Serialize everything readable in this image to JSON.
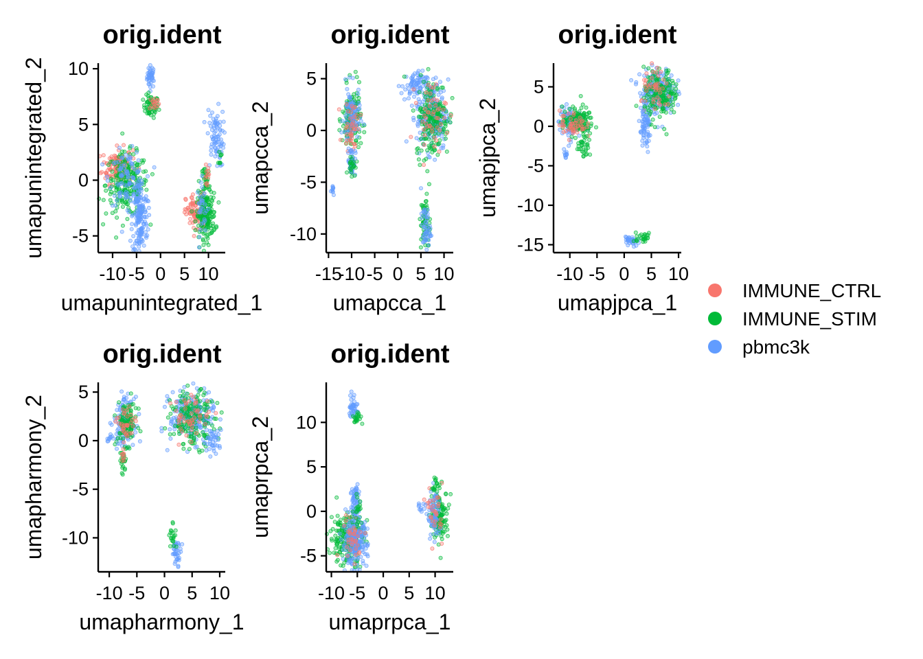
{
  "colors": {
    "IMMUNE_CTRL": "#F8766D",
    "IMMUNE_STIM": "#00BA38",
    "pbmc3k": "#619CFF"
  },
  "legend": {
    "position": "right",
    "items": [
      {
        "label": "IMMUNE_CTRL",
        "color": "#F8766D"
      },
      {
        "label": "IMMUNE_STIM",
        "color": "#00BA38"
      },
      {
        "label": "pbmc3k",
        "color": "#619CFF"
      }
    ]
  },
  "chart_data": [
    {
      "type": "scatter",
      "title": "orig.ident",
      "xlabel": "umapunintegrated_1",
      "ylabel": "umapunintegrated_2",
      "xlim": [
        -13,
        13.5
      ],
      "ylim": [
        -6.5,
        10.5
      ],
      "xticks": [
        -10,
        -5,
        0,
        5,
        10
      ],
      "xtick_labels": [
        "-10",
        "-5",
        "0",
        "5",
        "10"
      ],
      "yticks": [
        -5,
        0,
        5,
        10
      ],
      "ytick_labels": [
        "-5",
        "0",
        "5",
        "10"
      ],
      "clusters": [
        {
          "group": "pbmc3k",
          "cx": -2.0,
          "cy": 9.3,
          "sx": 0.4,
          "sy": 0.5,
          "n": 40
        },
        {
          "group": "IMMUNE_STIM",
          "cx": -2.0,
          "cy": 6.6,
          "sx": 0.8,
          "sy": 0.5,
          "n": 60
        },
        {
          "group": "IMMUNE_CTRL",
          "cx": -1.3,
          "cy": 6.9,
          "sx": 0.5,
          "sy": 0.3,
          "n": 15
        },
        {
          "group": "IMMUNE_CTRL",
          "cx": -9.0,
          "cy": 1.3,
          "sx": 1.6,
          "sy": 0.8,
          "n": 130
        },
        {
          "group": "IMMUNE_STIM",
          "cx": -7.0,
          "cy": -0.4,
          "sx": 2.2,
          "sy": 1.4,
          "n": 220
        },
        {
          "group": "pbmc3k",
          "cx": -7.0,
          "cy": 0.2,
          "sx": 1.8,
          "sy": 1.2,
          "n": 90
        },
        {
          "group": "pbmc3k",
          "cx": -4.3,
          "cy": -3.3,
          "sx": 0.8,
          "sy": 1.8,
          "n": 160
        },
        {
          "group": "pbmc3k",
          "cx": 11.5,
          "cy": 3.8,
          "sx": 0.9,
          "sy": 1.3,
          "n": 80
        },
        {
          "group": "IMMUNE_STIM",
          "cx": 12.3,
          "cy": 2.0,
          "sx": 0.2,
          "sy": 0.3,
          "n": 8
        },
        {
          "group": "IMMUNE_CTRL",
          "cx": 7.5,
          "cy": -3.0,
          "sx": 1.1,
          "sy": 0.9,
          "n": 100
        },
        {
          "group": "IMMUNE_STIM",
          "cx": 9.5,
          "cy": -3.2,
          "sx": 1.0,
          "sy": 1.0,
          "n": 160
        },
        {
          "group": "IMMUNE_STIM",
          "cx": 9.5,
          "cy": -0.2,
          "sx": 0.4,
          "sy": 0.8,
          "n": 40
        },
        {
          "group": "IMMUNE_CTRL",
          "cx": 9.6,
          "cy": 0.3,
          "sx": 0.3,
          "sy": 0.5,
          "n": 12
        },
        {
          "group": "pbmc3k",
          "cx": 8.8,
          "cy": -2.5,
          "sx": 0.6,
          "sy": 1.2,
          "n": 30
        }
      ]
    },
    {
      "type": "scatter",
      "title": "orig.ident",
      "xlabel": "umapcca_1",
      "ylabel": "umapcca_2",
      "xlim": [
        -15.5,
        12
      ],
      "ylim": [
        -11.8,
        6.5
      ],
      "xticks": [
        -15,
        -10,
        -5,
        0,
        5,
        10
      ],
      "xtick_labels": [
        "-15",
        "-10",
        "-5",
        "0",
        "5",
        "10"
      ],
      "yticks": [
        -10,
        -5,
        0,
        5
      ],
      "ytick_labels": [
        "-10",
        "-5",
        "0",
        "5"
      ],
      "clusters": [
        {
          "group": "pbmc3k",
          "cx": -14.0,
          "cy": -5.8,
          "sx": 0.2,
          "sy": 0.3,
          "n": 10
        },
        {
          "group": "IMMUNE_STIM",
          "cx": -10.0,
          "cy": 1.0,
          "sx": 1.0,
          "sy": 1.6,
          "n": 140
        },
        {
          "group": "pbmc3k",
          "cx": -10.0,
          "cy": 1.2,
          "sx": 0.9,
          "sy": 1.5,
          "n": 90
        },
        {
          "group": "IMMUNE_CTRL",
          "cx": -10.0,
          "cy": 0.5,
          "sx": 0.9,
          "sy": 1.2,
          "n": 40
        },
        {
          "group": "pbmc3k",
          "cx": -10.0,
          "cy": -3.0,
          "sx": 0.4,
          "sy": 0.7,
          "n": 40
        },
        {
          "group": "IMMUNE_STIM",
          "cx": -10.0,
          "cy": -3.3,
          "sx": 0.4,
          "sy": 0.5,
          "n": 20
        },
        {
          "group": "pbmc3k",
          "cx": 3.5,
          "cy": 4.3,
          "sx": 1.4,
          "sy": 0.7,
          "n": 70
        },
        {
          "group": "pbmc3k",
          "cx": 7.5,
          "cy": 1.5,
          "sx": 1.7,
          "sy": 1.7,
          "n": 220
        },
        {
          "group": "IMMUNE_STIM",
          "cx": 7.5,
          "cy": 1.2,
          "sx": 1.8,
          "sy": 1.9,
          "n": 180
        },
        {
          "group": "IMMUNE_CTRL",
          "cx": 7.3,
          "cy": 1.5,
          "sx": 1.6,
          "sy": 1.6,
          "n": 50
        },
        {
          "group": "IMMUNE_STIM",
          "cx": 6.0,
          "cy": -9.0,
          "sx": 0.5,
          "sy": 1.4,
          "n": 60
        },
        {
          "group": "pbmc3k",
          "cx": 6.0,
          "cy": -9.5,
          "sx": 0.5,
          "sy": 1.1,
          "n": 50
        }
      ]
    },
    {
      "type": "scatter",
      "title": "orig.ident",
      "xlabel": "umapjpca_1",
      "ylabel": "umapjpca_2",
      "xlim": [
        -13,
        10.5
      ],
      "ylim": [
        -16,
        8
      ],
      "xticks": [
        -10,
        -5,
        0,
        5,
        10
      ],
      "xtick_labels": [
        "-10",
        "-5",
        "0",
        "5",
        "10"
      ],
      "yticks": [
        -15,
        -10,
        -5,
        0,
        5
      ],
      "ytick_labels": [
        "-15",
        "-10",
        "-5",
        "0",
        "5"
      ],
      "clusters": [
        {
          "group": "pbmc3k",
          "cx": -10.0,
          "cy": 0.5,
          "sx": 1.0,
          "sy": 1.0,
          "n": 100
        },
        {
          "group": "IMMUNE_STIM",
          "cx": -8.5,
          "cy": 0.6,
          "sx": 1.4,
          "sy": 0.9,
          "n": 130
        },
        {
          "group": "IMMUNE_CTRL",
          "cx": -9.5,
          "cy": 0.3,
          "sx": 1.2,
          "sy": 0.9,
          "n": 50
        },
        {
          "group": "IMMUNE_STIM",
          "cx": -7.3,
          "cy": -2.6,
          "sx": 0.6,
          "sy": 0.6,
          "n": 30
        },
        {
          "group": "pbmc3k",
          "cx": -10.8,
          "cy": -3.5,
          "sx": 0.2,
          "sy": 0.4,
          "n": 10
        },
        {
          "group": "pbmc3k",
          "cx": 6.0,
          "cy": 4.5,
          "sx": 1.6,
          "sy": 1.5,
          "n": 200
        },
        {
          "group": "IMMUNE_STIM",
          "cx": 6.8,
          "cy": 4.0,
          "sx": 1.6,
          "sy": 1.6,
          "n": 170
        },
        {
          "group": "IMMUNE_CTRL",
          "cx": 6.0,
          "cy": 4.5,
          "sx": 1.4,
          "sy": 1.4,
          "n": 45
        },
        {
          "group": "pbmc3k",
          "cx": 3.8,
          "cy": -0.5,
          "sx": 0.6,
          "sy": 1.4,
          "n": 60
        },
        {
          "group": "pbmc3k",
          "cx": 1.3,
          "cy": -14.5,
          "sx": 0.6,
          "sy": 0.4,
          "n": 35
        },
        {
          "group": "IMMUNE_STIM",
          "cx": 3.2,
          "cy": -14.1,
          "sx": 1.0,
          "sy": 0.3,
          "n": 25
        }
      ]
    },
    {
      "type": "scatter",
      "title": "orig.ident",
      "xlabel": "umapharmony_1",
      "ylabel": "umapharmony_2",
      "xlim": [
        -12,
        11
      ],
      "ylim": [
        -13.5,
        6
      ],
      "xticks": [
        -10,
        -5,
        0,
        5,
        10
      ],
      "xtick_labels": [
        "-10",
        "-5",
        "0",
        "5",
        "10"
      ],
      "yticks": [
        -10,
        -5,
        0,
        5
      ],
      "ytick_labels": [
        "-10",
        "-5",
        "0",
        "5"
      ],
      "clusters": [
        {
          "group": "pbmc3k",
          "cx": -7.3,
          "cy": 2.0,
          "sx": 0.9,
          "sy": 1.2,
          "n": 120
        },
        {
          "group": "IMMUNE_STIM",
          "cx": -6.8,
          "cy": 1.8,
          "sx": 0.9,
          "sy": 1.1,
          "n": 110
        },
        {
          "group": "IMMUNE_CTRL",
          "cx": -7.0,
          "cy": 1.5,
          "sx": 0.8,
          "sy": 1.0,
          "n": 35
        },
        {
          "group": "pbmc3k",
          "cx": -10.0,
          "cy": 0.3,
          "sx": 0.6,
          "sy": 0.2,
          "n": 10
        },
        {
          "group": "IMMUNE_STIM",
          "cx": -7.5,
          "cy": -2.3,
          "sx": 0.3,
          "sy": 0.7,
          "n": 25
        },
        {
          "group": "IMMUNE_CTRL",
          "cx": -7.6,
          "cy": -1.6,
          "sx": 0.2,
          "sy": 0.4,
          "n": 8
        },
        {
          "group": "pbmc3k",
          "cx": 5.0,
          "cy": 2.5,
          "sx": 2.0,
          "sy": 1.3,
          "n": 230
        },
        {
          "group": "IMMUNE_STIM",
          "cx": 5.2,
          "cy": 2.2,
          "sx": 2.0,
          "sy": 1.4,
          "n": 170
        },
        {
          "group": "IMMUNE_CTRL",
          "cx": 5.0,
          "cy": 2.4,
          "sx": 1.8,
          "sy": 1.2,
          "n": 50
        },
        {
          "group": "pbmc3k",
          "cx": 8.8,
          "cy": 0.0,
          "sx": 0.8,
          "sy": 0.6,
          "n": 35
        },
        {
          "group": "pbmc3k",
          "cx": 2.2,
          "cy": -11.5,
          "sx": 0.4,
          "sy": 0.6,
          "n": 35
        },
        {
          "group": "IMMUNE_STIM",
          "cx": 1.5,
          "cy": -9.8,
          "sx": 0.3,
          "sy": 0.7,
          "n": 20
        }
      ]
    },
    {
      "type": "scatter",
      "title": "orig.ident",
      "xlabel": "umaprpca_1",
      "ylabel": "umaprpca_2",
      "xlim": [
        -11,
        13.5
      ],
      "ylim": [
        -6.8,
        14.5
      ],
      "xticks": [
        -10,
        -5,
        0,
        5,
        10
      ],
      "xtick_labels": [
        "-10",
        "-5",
        "0",
        "5",
        "10"
      ],
      "yticks": [
        -5,
        0,
        5,
        10
      ],
      "ytick_labels": [
        "-5",
        "0",
        "5",
        "10"
      ],
      "clusters": [
        {
          "group": "pbmc3k",
          "cx": -5.8,
          "cy": 11.8,
          "sx": 0.4,
          "sy": 0.7,
          "n": 40
        },
        {
          "group": "IMMUNE_STIM",
          "cx": -5.0,
          "cy": 10.5,
          "sx": 0.5,
          "sy": 0.5,
          "n": 20
        },
        {
          "group": "IMMUNE_STIM",
          "cx": -7.0,
          "cy": -3.0,
          "sx": 1.6,
          "sy": 1.5,
          "n": 200
        },
        {
          "group": "pbmc3k",
          "cx": -5.5,
          "cy": -3.5,
          "sx": 1.2,
          "sy": 1.3,
          "n": 200
        },
        {
          "group": "IMMUNE_CTRL",
          "cx": -6.0,
          "cy": -2.8,
          "sx": 1.2,
          "sy": 1.2,
          "n": 35
        },
        {
          "group": "pbmc3k",
          "cx": -5.3,
          "cy": 1.0,
          "sx": 0.5,
          "sy": 1.2,
          "n": 60
        },
        {
          "group": "IMMUNE_STIM",
          "cx": -5.0,
          "cy": 0.5,
          "sx": 0.4,
          "sy": 1.0,
          "n": 20
        },
        {
          "group": "IMMUNE_STIM",
          "cx": 11.0,
          "cy": -0.5,
          "sx": 0.8,
          "sy": 1.4,
          "n": 120
        },
        {
          "group": "pbmc3k",
          "cx": 9.8,
          "cy": -0.5,
          "sx": 0.6,
          "sy": 1.4,
          "n": 70
        },
        {
          "group": "IMMUNE_CTRL",
          "cx": 10.0,
          "cy": 0.0,
          "sx": 0.7,
          "sy": 1.5,
          "n": 30
        },
        {
          "group": "pbmc3k",
          "cx": 7.3,
          "cy": 0.5,
          "sx": 0.5,
          "sy": 0.3,
          "n": 10
        },
        {
          "group": "IMMUNE_STIM",
          "cx": 10.0,
          "cy": 3.0,
          "sx": 0.3,
          "sy": 0.5,
          "n": 15
        }
      ]
    }
  ]
}
